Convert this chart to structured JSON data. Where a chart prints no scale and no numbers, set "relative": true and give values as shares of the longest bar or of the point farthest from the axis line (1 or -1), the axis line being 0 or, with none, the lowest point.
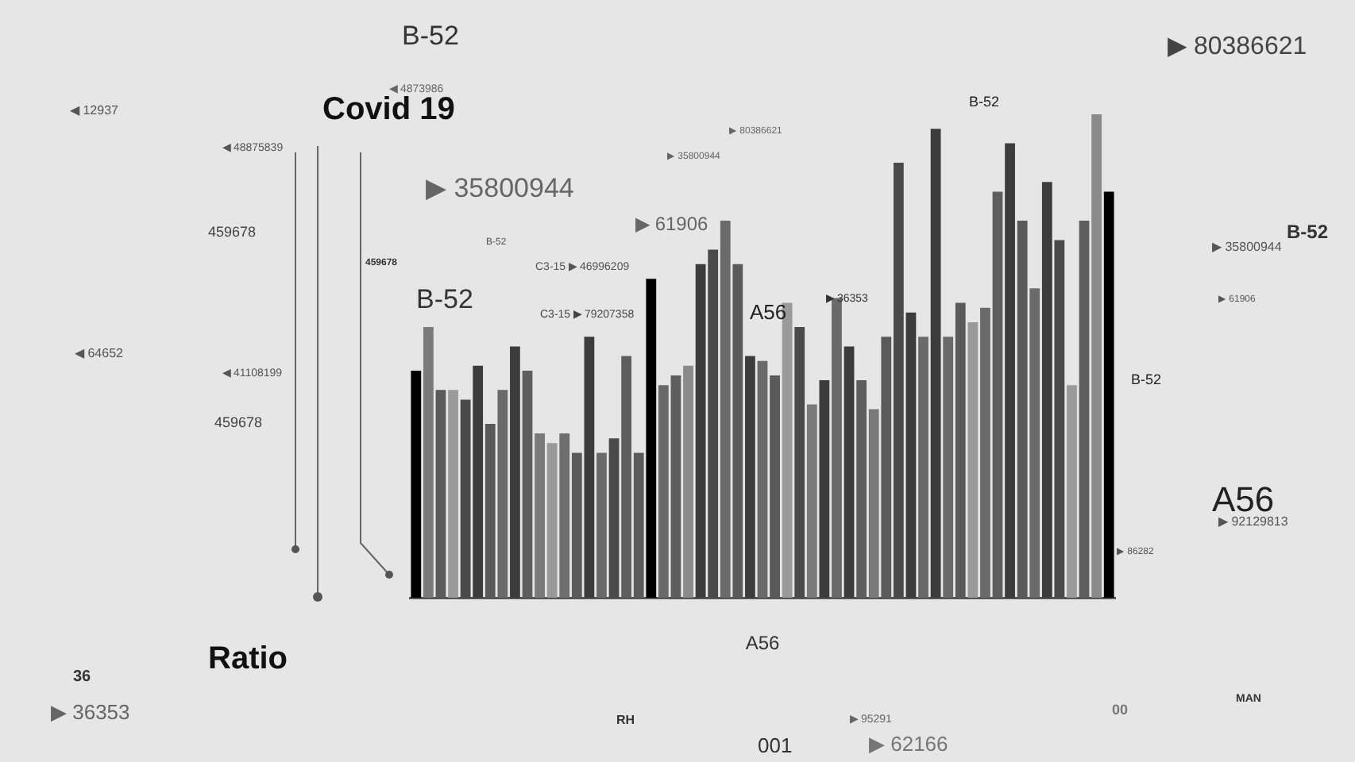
{
  "chart_data": {
    "type": "bar",
    "title": "Covid 19",
    "xlabel": "A56",
    "relative": true,
    "categories": [
      null,
      null,
      null,
      null,
      null,
      null,
      null,
      null,
      null,
      null,
      null,
      null,
      null,
      null,
      null,
      null,
      null,
      null,
      null,
      null,
      null,
      null,
      null,
      null,
      null,
      null,
      null,
      null,
      null,
      null,
      null,
      null,
      null,
      null,
      null,
      null,
      null,
      null,
      null,
      null,
      null,
      null,
      null,
      null,
      null,
      null,
      null,
      null,
      null,
      null,
      null,
      null,
      null,
      null,
      null,
      null,
      null
    ],
    "values": [
      0.47,
      0.56,
      0.43,
      0.43,
      0.41,
      0.48,
      0.36,
      0.43,
      0.52,
      0.47,
      0.34,
      0.32,
      0.34,
      0.3,
      0.54,
      0.3,
      0.33,
      0.5,
      0.3,
      0.66,
      0.44,
      0.46,
      0.48,
      0.69,
      0.72,
      0.78,
      0.69,
      0.5,
      0.49,
      0.46,
      0.61,
      0.56,
      0.4,
      0.45,
      0.62,
      0.52,
      0.45,
      0.39,
      0.54,
      0.9,
      0.59,
      0.54,
      0.97,
      0.54,
      0.61,
      0.57,
      0.6,
      0.84,
      0.94,
      0.78,
      0.64,
      0.86,
      0.74,
      0.44,
      0.78,
      1,
      0.84
    ],
    "colors": [
      "#000000",
      "#7a7a7a",
      "#5a5a5a",
      "#9a9a9a",
      "#4a4a4a",
      "#3c3c3c",
      "#5a5a5a",
      "#6a6a6a",
      "#3c3c3c",
      "#5e5e5e",
      "#7a7a7a",
      "#9a9a9a",
      "#6e6e6e",
      "#5a5a5a",
      "#3c3c3c",
      "#6a6a6a",
      "#4a4a4a",
      "#5e5e5e",
      "#5a5a5a",
      "#000000",
      "#6a6a6a",
      "#5e5e5e",
      "#8a8a8a",
      "#3c3c3c",
      "#4a4a4a",
      "#6a6a6a",
      "#5a5a5a",
      "#3c3c3c",
      "#6a6a6a",
      "#5a5a5a",
      "#9a9a9a",
      "#4a4a4a",
      "#7a7a7a",
      "#3c3c3c",
      "#6a6a6a",
      "#3c3c3c",
      "#5e5e5e",
      "#7a7a7a",
      "#5a5a5a",
      "#4a4a4a",
      "#3c3c3c",
      "#6a6a6a",
      "#3c3c3c",
      "#6a6a6a",
      "#5a5a5a",
      "#9a9a9a",
      "#6a6a6a",
      "#5e5e5e",
      "#3c3c3c",
      "#5a5a5a",
      "#6a6a6a",
      "#3c3c3c",
      "#4a4a4a",
      "#9a9a9a",
      "#5e5e5e",
      "#8a8a8a",
      "#000000"
    ],
    "annotations": [
      "B-52",
      "▶ 80386621",
      "◀ 12937",
      "◀ 4873986",
      "◀ 48875839",
      "459678",
      "459678",
      "◀ 64652",
      "◀ 41108199",
      "459678",
      "B-52",
      "C3-15 ▶ 46996209",
      "▶ 35800944",
      "▶ 80386621",
      "▶ 35800944",
      "▶ 61906",
      "A56",
      "B-52",
      "B-52",
      "B-52",
      "C3-15 ▶ 79207358",
      "▶ 36353",
      "B-52",
      "▶ 35800944",
      "▶ 61906",
      "A56",
      "▶ 92129813",
      "▶ 86282",
      "Ratio",
      "36",
      "▶ 36353",
      "RH",
      "001",
      "▶ 95291",
      "▶ 62166",
      "00",
      "MAN"
    ]
  }
}
